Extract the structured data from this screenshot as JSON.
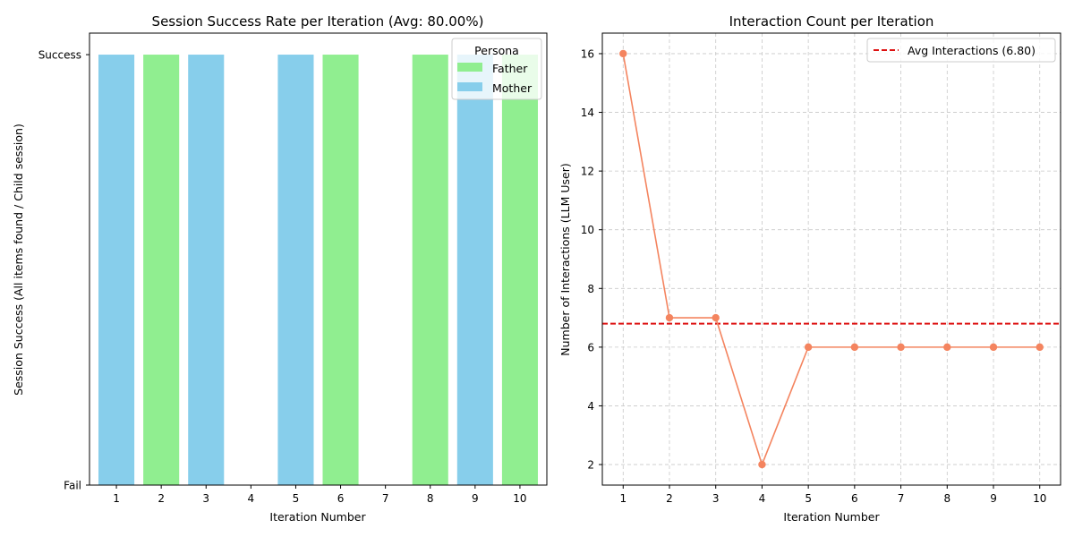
{
  "chart_data": [
    {
      "type": "bar",
      "title": "Session Success Rate per Iteration (Avg: 80.00%)",
      "xlabel": "Iteration Number",
      "ylabel": "Session Success (All items found / Child session)",
      "categories": [
        "1",
        "2",
        "3",
        "4",
        "5",
        "6",
        "7",
        "8",
        "9",
        "10"
      ],
      "values": [
        1,
        1,
        1,
        0,
        1,
        1,
        0,
        1,
        1,
        1
      ],
      "personas": [
        "Mother",
        "Father",
        "Mother",
        "Father",
        "Mother",
        "Father",
        "Mother",
        "Father",
        "Mother",
        "Father"
      ],
      "ytick_labels": [
        "Fail",
        "Success"
      ],
      "ylim": [
        0,
        1.05
      ],
      "grid": false,
      "legend": {
        "title": "Persona",
        "placement": "top-right",
        "entries": [
          {
            "label": "Father",
            "color": "#90ee90"
          },
          {
            "label": "Mother",
            "color": "#87ceeb"
          }
        ]
      },
      "colors": {
        "Father": "#90ee90",
        "Mother": "#87ceeb"
      }
    },
    {
      "type": "line",
      "title": "Interaction Count per Iteration",
      "xlabel": "Iteration Number",
      "ylabel": "Number of Interactions (LLM User)",
      "x": [
        1,
        2,
        3,
        4,
        5,
        6,
        7,
        8,
        9,
        10
      ],
      "series": [
        {
          "name": "Interactions",
          "values": [
            16,
            7,
            7,
            2,
            6,
            6,
            6,
            6,
            6,
            6
          ],
          "color": "#f4845f"
        }
      ],
      "average": {
        "label": "Avg Interactions (6.80)",
        "value": 6.8,
        "color": "#dd1111"
      },
      "yticks": [
        2,
        4,
        6,
        8,
        10,
        12,
        14,
        16
      ],
      "xlim": [
        0.55,
        10.45
      ],
      "ylim": [
        1.3,
        16.7
      ],
      "grid": true,
      "legend": {
        "placement": "top-right"
      }
    }
  ]
}
